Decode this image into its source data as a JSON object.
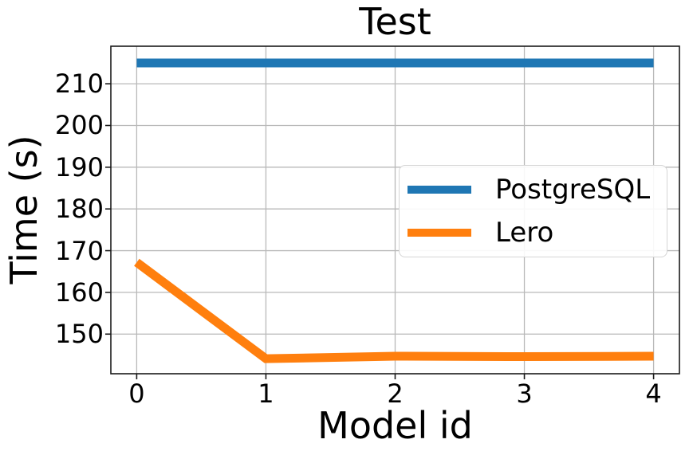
{
  "chart_data": {
    "type": "line",
    "title": "Test",
    "xlabel": "Model id",
    "ylabel": "Time (s)",
    "x": [
      0,
      1,
      2,
      3,
      4
    ],
    "series": [
      {
        "name": "PostgreSQL",
        "color": "#1f77b4",
        "values": [
          215,
          215,
          215,
          215,
          215
        ]
      },
      {
        "name": "Lero",
        "color": "#ff7f0e",
        "values": [
          167.2,
          144.1,
          144.7,
          144.6,
          144.7
        ]
      }
    ],
    "xticks": [
      0,
      1,
      2,
      3,
      4
    ],
    "yticks": [
      150,
      160,
      170,
      180,
      190,
      200,
      210
    ],
    "xlim": [
      -0.2,
      4.2
    ],
    "ylim": [
      140.5,
      219.0
    ],
    "grid": true,
    "grid_color": "#b9b9b9",
    "spine_color": "#1a1a1a",
    "line_width": 11,
    "legend_position": "center right"
  }
}
